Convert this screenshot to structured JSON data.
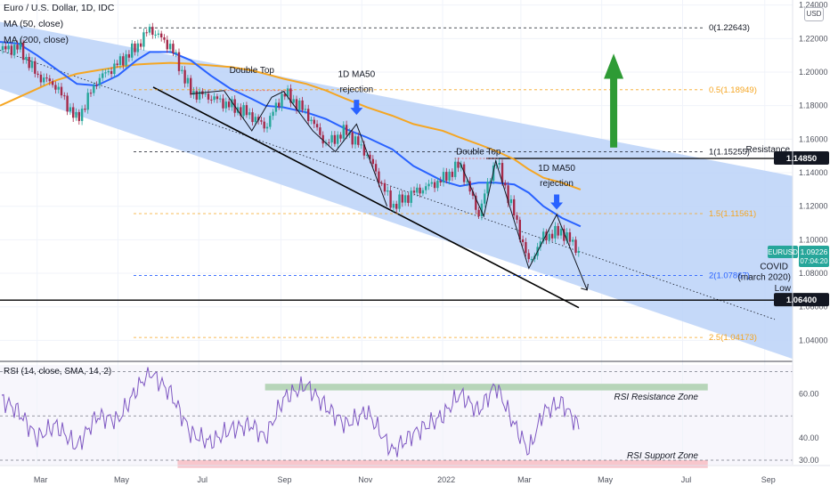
{
  "header": {
    "title": "Euro / U.S. Dollar, 1D, IDC",
    "ma50_label": "MA (50, close)",
    "ma200_label": "MA (200, close)",
    "currency_button": "USD"
  },
  "colors": {
    "channel": "#bbd2f8",
    "price_up": "#26a69a",
    "price_down": "#a52a4a",
    "ma50": "#2962ff",
    "ma200": "#f5a623",
    "fib": "#f5a623",
    "fib_blue": "#2962ff",
    "rsi": "#7e57c2",
    "rsi_resistance_zone": "#b7d5b9",
    "rsi_support_zone": "#f8c6cc",
    "arrow_up": "#2e9b35",
    "arrow_down": "#2962ff",
    "tag_dark": "#131722",
    "tag_eurusd": "#26a69a"
  },
  "chart_data": [
    {
      "type": "line",
      "title": "Euro / U.S. Dollar, 1D, IDC",
      "series_description": "EURUSD daily candles with 50 and 200 day moving averages",
      "x_ticks": [
        "Mar",
        "May",
        "Jul",
        "Sep",
        "Nov",
        "2022",
        "Mar",
        "May",
        "Jul",
        "Sep"
      ],
      "y_ticks": [
        "1.24000",
        "1.22000",
        "1.20000",
        "1.18000",
        "1.16000",
        "1.14000",
        "1.12000",
        "1.10000",
        "1.08000",
        "1.06000",
        "1.04000"
      ],
      "ylim": [
        1.028,
        1.243
      ],
      "x": [
        "2021-02-01",
        "2021-02-15",
        "2021-03-01",
        "2021-03-15",
        "2021-03-31",
        "2021-04-15",
        "2021-05-01",
        "2021-05-15",
        "2021-05-25",
        "2021-06-10",
        "2021-06-25",
        "2021-07-10",
        "2021-07-25",
        "2021-08-10",
        "2021-08-20",
        "2021-09-03",
        "2021-09-20",
        "2021-10-05",
        "2021-10-20",
        "2021-11-05",
        "2021-11-24",
        "2021-12-10",
        "2022-01-01",
        "2022-01-14",
        "2022-01-28",
        "2022-02-10",
        "2022-02-24",
        "2022-03-07",
        "2022-03-18",
        "2022-04-01",
        "2022-04-15"
      ],
      "series": [
        {
          "name": "EURUSD",
          "values": [
            1.213,
            1.215,
            1.198,
            1.192,
            1.171,
            1.195,
            1.205,
            1.215,
            1.226,
            1.215,
            1.188,
            1.185,
            1.18,
            1.174,
            1.167,
            1.188,
            1.176,
            1.157,
            1.165,
            1.151,
            1.12,
            1.128,
            1.136,
            1.145,
            1.115,
            1.148,
            1.115,
            1.086,
            1.102,
            1.105,
            1.092
          ]
        },
        {
          "name": "MA (50, close)",
          "values": [
            1.218,
            1.217,
            1.21,
            1.202,
            1.193,
            1.192,
            1.198,
            1.207,
            1.212,
            1.212,
            1.207,
            1.198,
            1.19,
            1.184,
            1.18,
            1.179,
            1.176,
            1.172,
            1.166,
            1.161,
            1.154,
            1.144,
            1.135,
            1.132,
            1.134,
            1.134,
            1.133,
            1.128,
            1.12,
            1.113,
            1.108
          ]
        },
        {
          "name": "MA (200, close)",
          "values": [
            1.18,
            1.185,
            1.19,
            1.195,
            1.199,
            1.201,
            1.203,
            1.2045,
            1.205,
            1.2055,
            1.205,
            1.204,
            1.203,
            1.201,
            1.199,
            1.196,
            1.193,
            1.189,
            1.184,
            1.179,
            1.174,
            1.169,
            1.165,
            1.161,
            1.157,
            1.153,
            1.148,
            1.142,
            1.137,
            1.134,
            1.13
          ]
        }
      ],
      "fib_levels": [
        {
          "label": "0(1.22643)",
          "value": 1.22643
        },
        {
          "label": "0.5(1.18949)",
          "value": 1.18949
        },
        {
          "label": "1(1.15255)",
          "value": 1.15255
        },
        {
          "label": "1.5(1.11561)",
          "value": 1.11561
        },
        {
          "label": "2(1.07867)",
          "value": 1.07867
        },
        {
          "label": "2.5(1.04173)",
          "value": 1.04173
        }
      ],
      "price_tags": [
        {
          "label": "1.14850",
          "value": 1.1485
        },
        {
          "label": "1.06400",
          "value": 1.064
        }
      ],
      "current_price": {
        "symbol": "EURUSD",
        "value": "1.09226",
        "countdown": "07:04:20"
      },
      "annotations": {
        "double_top_1": "Double Top",
        "double_top_2": "Double Top",
        "ma50_rejection_1": "1D MA50 rejection",
        "ma50_rejection_2": "1D MA50 rejection",
        "resistance": "Resistance",
        "covid_low": "COVID (march 2020) Low"
      }
    },
    {
      "type": "line",
      "title": "RSI (14, close, SMA, 14, 2)",
      "y_ticks": [
        "60.00",
        "40.00",
        "30.00"
      ],
      "ylim": [
        28,
        73
      ],
      "series": [
        {
          "name": "RSI",
          "values": [
            58,
            52,
            40,
            46,
            36,
            50,
            48,
            62,
            70,
            60,
            42,
            38,
            44,
            46,
            40,
            58,
            64,
            54,
            46,
            52,
            34,
            42,
            50,
            60,
            52,
            64,
            46,
            34,
            52,
            56,
            44
          ]
        }
      ],
      "zones": [
        {
          "label": "RSI Resistance Zone",
          "from": 61.5,
          "to": 64.5
        },
        {
          "label": "RSI Support Zone",
          "from": 26.5,
          "to": 30.0
        }
      ]
    }
  ]
}
